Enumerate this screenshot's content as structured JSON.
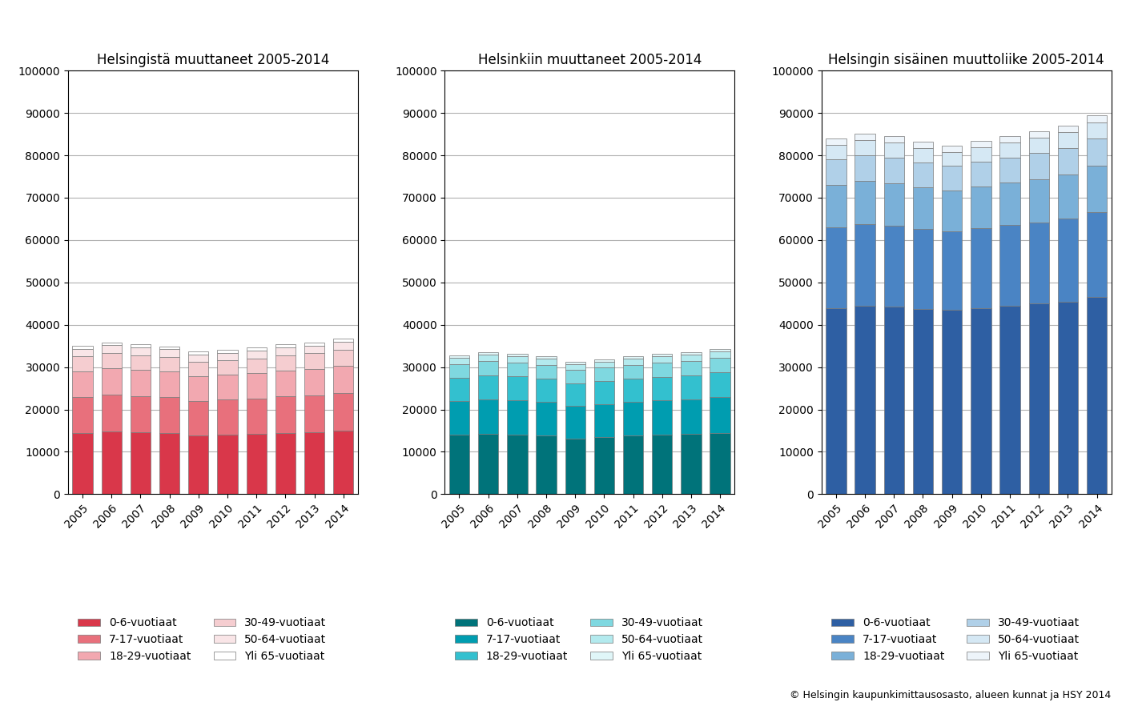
{
  "chart_data": [
    {
      "type": "bar",
      "stacked": true,
      "title": "Helsingistä muuttaneet 2005-2014",
      "categories": [
        "2005",
        "2006",
        "2007",
        "2008",
        "2009",
        "2010",
        "2011",
        "2012",
        "2013",
        "2014"
      ],
      "series": [
        {
          "name": "0-6-vuotiaat",
          "color": "#d9374a",
          "values": [
            14500,
            14800,
            14600,
            14400,
            13800,
            14000,
            14200,
            14500,
            14700,
            15000
          ]
        },
        {
          "name": "7-17-vuotiaat",
          "color": "#e8707c",
          "values": [
            8500,
            8700,
            8600,
            8500,
            8200,
            8300,
            8400,
            8600,
            8700,
            8900
          ]
        },
        {
          "name": "18-29-vuotiaat",
          "color": "#f2a8b0",
          "values": [
            6000,
            6200,
            6100,
            6000,
            5800,
            5900,
            6000,
            6100,
            6200,
            6400
          ]
        },
        {
          "name": "30-49-vuotiaat",
          "color": "#f5cdd0",
          "values": [
            3500,
            3600,
            3550,
            3500,
            3400,
            3450,
            3500,
            3600,
            3650,
            3700
          ]
        },
        {
          "name": "50-64-vuotiaat",
          "color": "#f9e5e7",
          "values": [
            1800,
            1850,
            1825,
            1800,
            1750,
            1775,
            1800,
            1850,
            1875,
            1900
          ]
        },
        {
          "name": "Yli 65-vuotiaat",
          "color": "#ffffff",
          "values": [
            700,
            720,
            710,
            700,
            680,
            690,
            700,
            720,
            730,
            750
          ]
        }
      ],
      "ylim": [
        0,
        100000
      ],
      "yticks": [
        0,
        10000,
        20000,
        30000,
        40000,
        50000,
        60000,
        70000,
        80000,
        90000,
        100000
      ],
      "grid": true,
      "legend": "lower left"
    },
    {
      "type": "bar",
      "stacked": true,
      "title": "Helsinkiin muuttaneet 2005-2014",
      "categories": [
        "2005",
        "2006",
        "2007",
        "2008",
        "2009",
        "2010",
        "2011",
        "2012",
        "2013",
        "2014"
      ],
      "series": [
        {
          "name": "0-6-vuotiaat",
          "color": "#00737a",
          "values": [
            14000,
            14200,
            14100,
            13800,
            13200,
            13500,
            13800,
            14000,
            14200,
            14500
          ]
        },
        {
          "name": "7-17-vuotiaat",
          "color": "#009db0",
          "values": [
            8000,
            8200,
            8100,
            8000,
            7700,
            7800,
            8000,
            8100,
            8200,
            8400
          ]
        },
        {
          "name": "18-29-vuotiaat",
          "color": "#33c0cf",
          "values": [
            5500,
            5700,
            5600,
            5500,
            5300,
            5400,
            5500,
            5600,
            5700,
            5900
          ]
        },
        {
          "name": "30-49-vuotiaat",
          "color": "#7fd8e0",
          "values": [
            3200,
            3300,
            3250,
            3200,
            3100,
            3150,
            3200,
            3300,
            3350,
            3400
          ]
        },
        {
          "name": "50-64-vuotiaat",
          "color": "#b3eaee",
          "values": [
            1500,
            1550,
            1525,
            1500,
            1450,
            1475,
            1500,
            1550,
            1575,
            1600
          ]
        },
        {
          "name": "Yli 65-vuotiaat",
          "color": "#e0f6f8",
          "values": [
            500,
            520,
            510,
            500,
            480,
            490,
            500,
            520,
            530,
            550
          ]
        }
      ],
      "ylim": [
        0,
        100000
      ],
      "yticks": [
        0,
        10000,
        20000,
        30000,
        40000,
        50000,
        60000,
        70000,
        80000,
        90000,
        100000
      ],
      "grid": true,
      "legend": "lower left"
    },
    {
      "type": "bar",
      "stacked": true,
      "title": "Helsingin sisäinen muuttoliike 2005-2014",
      "categories": [
        "2005",
        "2006",
        "2007",
        "2008",
        "2009",
        "2010",
        "2011",
        "2012",
        "2013",
        "2014"
      ],
      "series": [
        {
          "name": "0-6-vuotiaat",
          "color": "#2e5fa3",
          "values": [
            44000,
            44500,
            44200,
            43800,
            43500,
            44000,
            44500,
            45000,
            45500,
            46500
          ]
        },
        {
          "name": "7-17-vuotiaat",
          "color": "#4a84c4",
          "values": [
            19000,
            19200,
            19100,
            18800,
            18600,
            18800,
            19000,
            19200,
            19500,
            20000
          ]
        },
        {
          "name": "18-29-vuotiaat",
          "color": "#7ab0d8",
          "values": [
            10000,
            10200,
            10100,
            9800,
            9600,
            9800,
            10000,
            10200,
            10500,
            11000
          ]
        },
        {
          "name": "30-49-vuotiaat",
          "color": "#b0d0e8",
          "values": [
            6000,
            6100,
            6050,
            5900,
            5800,
            5900,
            6000,
            6100,
            6200,
            6500
          ]
        },
        {
          "name": "50-64-vuotiaat",
          "color": "#d5e8f4",
          "values": [
            3500,
            3600,
            3550,
            3400,
            3350,
            3400,
            3500,
            3600,
            3700,
            3800
          ]
        },
        {
          "name": "Yli 65-vuotiaat",
          "color": "#edf4fa",
          "values": [
            1500,
            1550,
            1525,
            1500,
            1450,
            1475,
            1500,
            1550,
            1600,
            1700
          ]
        }
      ],
      "ylim": [
        0,
        100000
      ],
      "yticks": [
        0,
        10000,
        20000,
        30000,
        40000,
        50000,
        60000,
        70000,
        80000,
        90000,
        100000
      ],
      "grid": true,
      "legend": "lower left",
      "annotations": [
        "© Helsingin kaupunkimittausosasto, alueen kunnat ja HSY 2014"
      ]
    }
  ]
}
